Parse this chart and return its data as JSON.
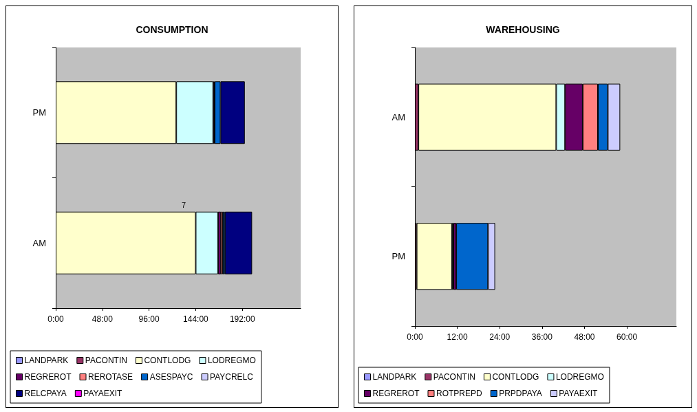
{
  "chart_data": [
    {
      "type": "bar",
      "title": "CONSUMPTION",
      "orientation": "horizontal",
      "stacked": true,
      "categories": [
        "PM",
        "AM"
      ],
      "xlim": [
        0,
        252
      ],
      "xticks": [
        {
          "value": 0,
          "label": "0:00"
        },
        {
          "value": 48,
          "label": "48:00"
        },
        {
          "value": 96,
          "label": "96:00"
        },
        {
          "value": 144,
          "label": "144:00"
        },
        {
          "value": 192,
          "label": "192:00"
        }
      ],
      "grid": false,
      "legend": "bottom",
      "annotations": [
        "7"
      ],
      "series": [
        {
          "name": "LANDPARK",
          "color": "#9999ff",
          "values": [
            null,
            null
          ]
        },
        {
          "name": "PACONTIN",
          "color": "#993366",
          "values": [
            null,
            null
          ]
        },
        {
          "name": "CONTLODG",
          "color": "#ffffcc",
          "values": [
            124,
            144
          ]
        },
        {
          "name": "LODREGMO",
          "color": "#ccffff",
          "values": [
            38,
            23
          ]
        },
        {
          "name": "REGREROT",
          "color": "#660066",
          "values": [
            1.5,
            3
          ]
        },
        {
          "name": "REROTASE",
          "color": "#ff8080",
          "values": [
            null,
            2
          ]
        },
        {
          "name": "ASESPAYC",
          "color": "#0066cc",
          "values": [
            6,
            2
          ]
        },
        {
          "name": "PAYCRELC",
          "color": "#ccccff",
          "values": [
            null,
            null
          ]
        },
        {
          "name": "RELCPAYA",
          "color": "#000080",
          "values": [
            25,
            28
          ]
        },
        {
          "name": "PAYAEXIT",
          "color": "#ff00ff",
          "values": [
            null,
            null
          ]
        }
      ]
    },
    {
      "type": "bar",
      "title": "WAREHOUSING",
      "orientation": "horizontal",
      "stacked": true,
      "categories": [
        "AM",
        "PM"
      ],
      "xlim": [
        0,
        74
      ],
      "xticks": [
        {
          "value": 0,
          "label": "0:00"
        },
        {
          "value": 12,
          "label": "12:00"
        },
        {
          "value": 24,
          "label": "24:00"
        },
        {
          "value": 36,
          "label": "36:00"
        },
        {
          "value": 48,
          "label": "48:00"
        },
        {
          "value": 60,
          "label": "60:00"
        }
      ],
      "grid": false,
      "legend": "bottom",
      "series": [
        {
          "name": "LANDPARK",
          "color": "#9999ff",
          "values": [
            null,
            null
          ]
        },
        {
          "name": "PACONTIN",
          "color": "#993366",
          "values": [
            1,
            0.5
          ]
        },
        {
          "name": "CONTLODG",
          "color": "#ffffcc",
          "values": [
            39,
            10
          ]
        },
        {
          "name": "LODREGMO",
          "color": "#ccffff",
          "values": [
            2.5,
            0.4
          ]
        },
        {
          "name": "REGREROT",
          "color": "#660066",
          "values": [
            5,
            0.8
          ]
        },
        {
          "name": "ROTPREPD",
          "color": "#ff8080",
          "values": [
            4.3,
            null
          ]
        },
        {
          "name": "PRPDPAYA",
          "color": "#0066cc",
          "values": [
            2.8,
            9
          ]
        },
        {
          "name": "PAYAEXIT",
          "color": "#ccccff",
          "values": [
            3.5,
            2
          ]
        }
      ]
    }
  ]
}
